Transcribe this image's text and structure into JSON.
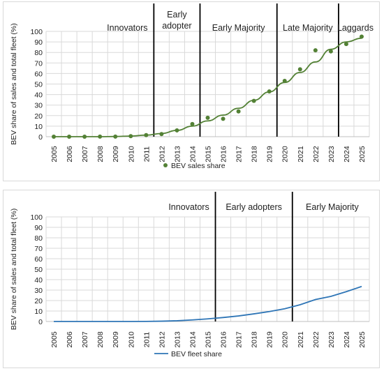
{
  "chart_data": [
    {
      "type": "scatter",
      "ylabel": "BEV share of sales and total fleet (%)",
      "xlabel": "",
      "ylim": [
        0,
        100
      ],
      "yticks": [
        0,
        10,
        20,
        30,
        40,
        50,
        60,
        70,
        80,
        90,
        100
      ],
      "categories": [
        "2005",
        "2006",
        "2007",
        "2008",
        "2009",
        "2010",
        "2011",
        "2012",
        "2013",
        "2014",
        "2015",
        "2016",
        "2017",
        "2018",
        "2019",
        "2020",
        "2021",
        "2022",
        "2023",
        "2024",
        "2025"
      ],
      "series": [
        {
          "name": "BEV sales share",
          "color": "#538135",
          "marker": "dot",
          "values": [
            0,
            0,
            0,
            0.1,
            0.1,
            0.5,
            1.5,
            2.5,
            6,
            12,
            18,
            17,
            24,
            34,
            43,
            53,
            64,
            82,
            81,
            88,
            95
          ]
        }
      ],
      "trendline": {
        "color": "#538135",
        "values": [
          0,
          0,
          0,
          0,
          0.2,
          0.6,
          1.5,
          3,
          6,
          10,
          15,
          20.5,
          27,
          34.5,
          42.5,
          51.5,
          61,
          71,
          83,
          90,
          93.5
        ]
      },
      "stage_lines_after": [
        2011.5,
        2014.5,
        2019.5,
        2023.5
      ],
      "stages": [
        "Innovators",
        "Early\nadopter",
        "Early Majority",
        "Late Majority",
        "Laggards"
      ],
      "legend": "bottom",
      "grid": true
    },
    {
      "type": "line",
      "ylabel": "BEV share of sales and total fleet (%)",
      "xlabel": "",
      "ylim": [
        0,
        100
      ],
      "yticks": [
        0,
        10,
        20,
        30,
        40,
        50,
        60,
        70,
        80,
        90,
        100
      ],
      "categories": [
        "2005",
        "2006",
        "2007",
        "2008",
        "2009",
        "2010",
        "2011",
        "2012",
        "2013",
        "2014",
        "2015",
        "2016",
        "2017",
        "2018",
        "2019",
        "2020",
        "2021",
        "2022",
        "2023",
        "2024",
        "2025"
      ],
      "series": [
        {
          "name": "BEV fleet share",
          "color": "#2e75b6",
          "values": [
            0,
            0,
            0,
            0,
            0,
            0,
            0.1,
            0.3,
            0.7,
            1.5,
            2.5,
            3.8,
            5.3,
            7.3,
            9.5,
            12.2,
            16,
            21,
            24,
            28.5,
            33.5
          ]
        }
      ],
      "stage_lines_after": [
        2015.5,
        2020.5
      ],
      "stages": [
        "Innovators",
        "Early adopters",
        "Early Majority"
      ],
      "legend": "bottom",
      "grid": true
    }
  ]
}
